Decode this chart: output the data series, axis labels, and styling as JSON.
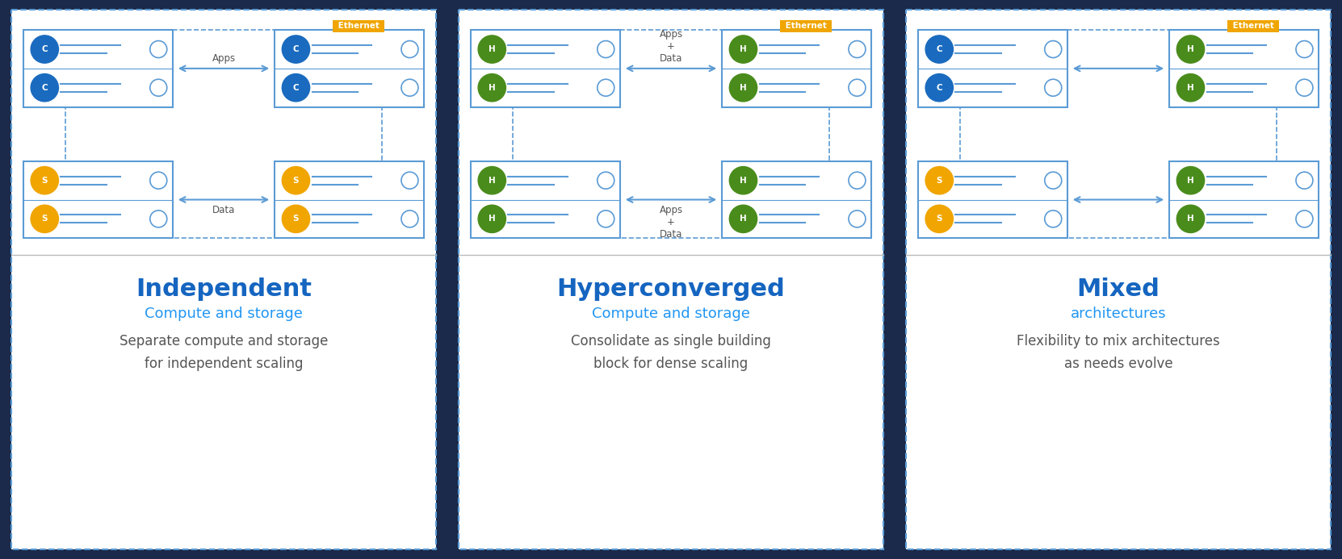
{
  "bg_color": "#1b2a4a",
  "panel_bg": "#ffffff",
  "dashed_border": "#5b9bd5",
  "ethernet_bg": "#f0a500",
  "ethernet_text": "#ffffff",
  "arrow_color": "#5b9bd5",
  "server_border": "#5b9bd5",
  "server_line_color": "#5b9bd5",
  "title_blue": "#1565c0",
  "subtitle_blue": "#2196f3",
  "desc_color": "#555555",
  "divider_color": "#bbbbbb",
  "panels": [
    {
      "title": "Independent",
      "subtitle": "Compute and storage",
      "desc": "Separate compute and storage\nfor independent scaling",
      "top_left_nodes": [
        {
          "label": "C",
          "color": "#1a6bbf"
        },
        {
          "label": "C",
          "color": "#1a6bbf"
        }
      ],
      "top_right_nodes": [
        {
          "label": "C",
          "color": "#1a6bbf"
        },
        {
          "label": "C",
          "color": "#1a6bbf"
        }
      ],
      "bot_left_nodes": [
        {
          "label": "S",
          "color": "#f0a500"
        },
        {
          "label": "S",
          "color": "#f0a500"
        }
      ],
      "bot_right_nodes": [
        {
          "label": "S",
          "color": "#f0a500"
        },
        {
          "label": "S",
          "color": "#f0a500"
        }
      ],
      "top_arrow_label": "Apps",
      "bot_arrow_label": "Data",
      "top_label_above": true,
      "bot_label_above": false
    },
    {
      "title": "Hyperconverged",
      "subtitle": "Compute and storage",
      "desc": "Consolidate as single building\nblock for dense scaling",
      "top_left_nodes": [
        {
          "label": "H",
          "color": "#4a8c1c"
        },
        {
          "label": "H",
          "color": "#4a8c1c"
        }
      ],
      "top_right_nodes": [
        {
          "label": "H",
          "color": "#4a8c1c"
        },
        {
          "label": "H",
          "color": "#4a8c1c"
        }
      ],
      "bot_left_nodes": [
        {
          "label": "H",
          "color": "#4a8c1c"
        },
        {
          "label": "H",
          "color": "#4a8c1c"
        }
      ],
      "bot_right_nodes": [
        {
          "label": "H",
          "color": "#4a8c1c"
        },
        {
          "label": "H",
          "color": "#4a8c1c"
        }
      ],
      "top_arrow_label": "Apps\n+\nData",
      "bot_arrow_label": "Apps\n+\nData",
      "top_label_above": true,
      "bot_label_above": false
    },
    {
      "title": "Mixed",
      "subtitle": "architectures",
      "desc": "Flexibility to mix architectures\nas needs evolve",
      "top_left_nodes": [
        {
          "label": "C",
          "color": "#1a6bbf"
        },
        {
          "label": "C",
          "color": "#1a6bbf"
        }
      ],
      "top_right_nodes": [
        {
          "label": "H",
          "color": "#4a8c1c"
        },
        {
          "label": "H",
          "color": "#4a8c1c"
        }
      ],
      "bot_left_nodes": [
        {
          "label": "S",
          "color": "#f0a500"
        },
        {
          "label": "S",
          "color": "#f0a500"
        }
      ],
      "bot_right_nodes": [
        {
          "label": "H",
          "color": "#4a8c1c"
        },
        {
          "label": "H",
          "color": "#4a8c1c"
        }
      ],
      "top_arrow_label": "",
      "bot_arrow_label": "",
      "top_label_above": true,
      "bot_label_above": false
    }
  ]
}
